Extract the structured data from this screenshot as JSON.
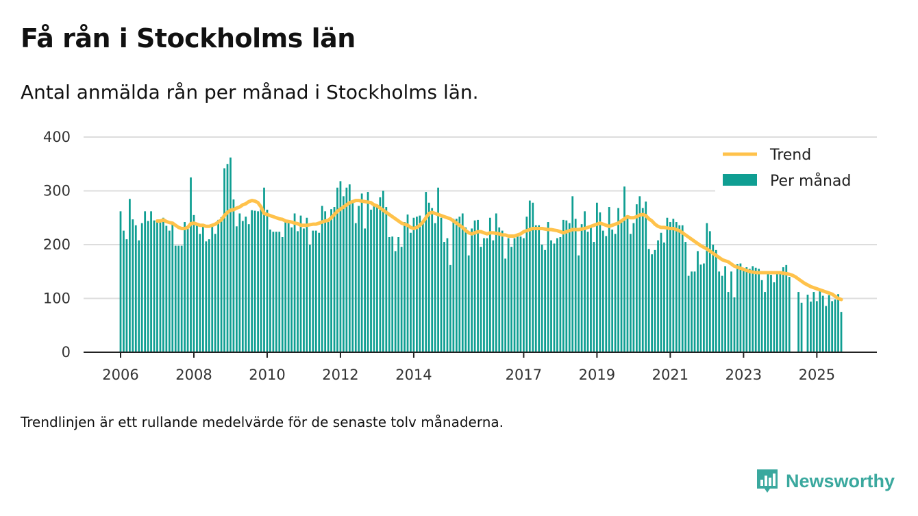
{
  "title": "Få rån i Stockholms län",
  "subtitle": "Antal anmälda rån per månad i Stockholms län.",
  "footnote": "Trendlinjen är ett rullande medelvärde för de senaste tolv månaderna.",
  "brand": {
    "name": "Newsworthy",
    "icon": "newsworthy-logo-icon"
  },
  "colors": {
    "bars": "#0f9e92",
    "trend": "#ffc24b",
    "grid": "#dddddd",
    "axis": "#222222",
    "brand": "#3aa89e"
  },
  "chart_data": {
    "type": "bar",
    "start": "2006-01",
    "frequency": "monthly",
    "ylim": [
      0,
      400
    ],
    "yticks": [
      0,
      100,
      200,
      300,
      400
    ],
    "xticks": [
      "2006",
      "2008",
      "2010",
      "2012",
      "2014",
      "2017",
      "2019",
      "2021",
      "2023",
      "2025"
    ],
    "grid": true,
    "legend": {
      "position": "top-right",
      "entries": [
        "Trend",
        "Per månad"
      ]
    },
    "series": [
      {
        "name": "Per månad",
        "type": "bar",
        "values": [
          262,
          226,
          210,
          285,
          247,
          236,
          208,
          240,
          262,
          244,
          262,
          245,
          244,
          245,
          250,
          235,
          226,
          240,
          198,
          198,
          198,
          242,
          230,
          325,
          255,
          237,
          220,
          234,
          206,
          210,
          236,
          220,
          246,
          251,
          342,
          350,
          362,
          284,
          234,
          258,
          244,
          252,
          238,
          264,
          263,
          262,
          270,
          306,
          265,
          228,
          224,
          224,
          224,
          214,
          246,
          240,
          232,
          258,
          225,
          254,
          230,
          250,
          200,
          226,
          226,
          222,
          272,
          262,
          245,
          266,
          270,
          306,
          318,
          290,
          306,
          312,
          280,
          240,
          272,
          295,
          230,
          298,
          265,
          276,
          272,
          288,
          300,
          270,
          214,
          215,
          188,
          214,
          196,
          242,
          256,
          222,
          250,
          252,
          254,
          242,
          298,
          278,
          268,
          240,
          306,
          250,
          205,
          212,
          162,
          248,
          248,
          252,
          258,
          232,
          180,
          230,
          245,
          246,
          196,
          212,
          212,
          250,
          208,
          258,
          232,
          226,
          174,
          212,
          196,
          212,
          216,
          215,
          212,
          252,
          282,
          278,
          236,
          236,
          200,
          190,
          242,
          208,
          202,
          212,
          214,
          246,
          245,
          240,
          290,
          248,
          180,
          238,
          262,
          224,
          232,
          205,
          278,
          260,
          226,
          216,
          270,
          228,
          220,
          268,
          246,
          308,
          250,
          220,
          240,
          275,
          290,
          268,
          280,
          192,
          182,
          190,
          208,
          222,
          204,
          250,
          242,
          248,
          242,
          236,
          236,
          205,
          142,
          150,
          150,
          188,
          163,
          165,
          240,
          225,
          200,
          190,
          150,
          142,
          160,
          112,
          150,
          102,
          164,
          165,
          152,
          158,
          155,
          160,
          157,
          155,
          134,
          112,
          150,
          144,
          130,
          150,
          150,
          158,
          162,
          140,
          0,
          0,
          112,
          92,
          0,
          107,
          94,
          112,
          95,
          114,
          105,
          86,
          106,
          95,
          98,
          108,
          75
        ]
      },
      {
        "name": "Trend",
        "type": "line",
        "values": [
          null,
          null,
          null,
          null,
          null,
          null,
          null,
          null,
          null,
          null,
          null,
          null,
          244,
          244,
          246,
          243,
          241,
          240,
          236,
          232,
          230,
          230,
          232,
          239,
          240,
          238,
          236,
          236,
          234,
          234,
          236,
          238,
          242,
          246,
          254,
          260,
          264,
          265,
          268,
          270,
          274,
          276,
          280,
          282,
          281,
          278,
          270,
          258,
          256,
          254,
          252,
          250,
          248,
          247,
          244,
          243,
          242,
          240,
          239,
          236,
          236,
          236,
          237,
          238,
          238,
          240,
          242,
          244,
          245,
          250,
          256,
          262,
          266,
          270,
          274,
          278,
          280,
          282,
          282,
          281,
          280,
          279,
          278,
          274,
          272,
          268,
          264,
          260,
          256,
          252,
          248,
          244,
          240,
          238,
          236,
          232,
          230,
          232,
          236,
          242,
          250,
          258,
          260,
          258,
          256,
          254,
          252,
          250,
          248,
          244,
          240,
          236,
          232,
          226,
          222,
          220,
          222,
          224,
          224,
          222,
          220,
          222,
          222,
          221,
          220,
          218,
          218,
          216,
          216,
          216,
          218,
          220,
          224,
          226,
          228,
          230,
          230,
          230,
          230,
          229,
          228,
          228,
          227,
          226,
          224,
          222,
          224,
          226,
          228,
          228,
          228,
          229,
          230,
          232,
          234,
          236,
          238,
          240,
          238,
          236,
          234,
          236,
          238,
          240,
          244,
          248,
          252,
          250,
          250,
          252,
          255,
          256,
          254,
          248,
          244,
          238,
          234,
          232,
          232,
          231,
          230,
          230,
          228,
          226,
          222,
          218,
          214,
          210,
          206,
          202,
          198,
          195,
          192,
          188,
          184,
          180,
          176,
          172,
          170,
          168,
          164,
          160,
          158,
          156,
          154,
          152,
          150,
          149,
          148,
          148,
          148,
          148,
          148,
          148,
          148,
          148,
          148,
          147,
          146,
          145,
          143,
          140,
          136,
          132,
          128,
          125,
          122,
          120,
          118,
          116,
          114,
          112,
          110,
          108,
          104,
          100,
          98
        ]
      }
    ]
  }
}
